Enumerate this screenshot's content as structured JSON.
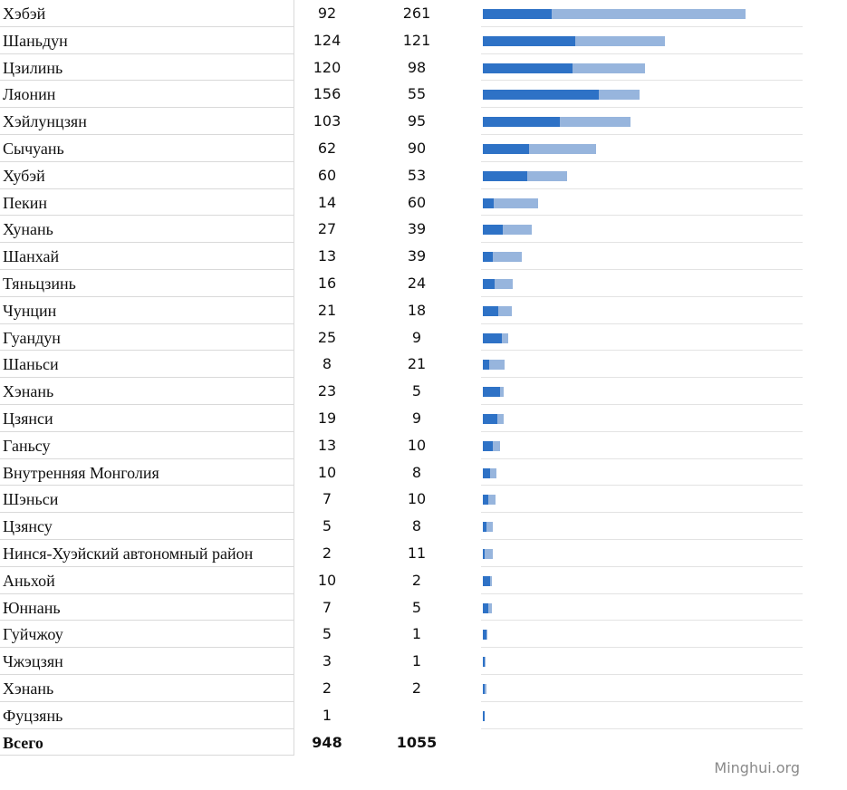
{
  "chart_data": {
    "type": "bar",
    "stacked": true,
    "series_colors": [
      "#2e72c6",
      "#97b5dd"
    ],
    "rows": [
      {
        "name": "Хэбэй",
        "a": 92,
        "b": 261
      },
      {
        "name": "Шаньдун",
        "a": 124,
        "b": 121
      },
      {
        "name": "Цзилинь",
        "a": 120,
        "b": 98
      },
      {
        "name": "Ляонин",
        "a": 156,
        "b": 55
      },
      {
        "name": "Хэйлунцзян",
        "a": 103,
        "b": 95
      },
      {
        "name": "Сычуань",
        "a": 62,
        "b": 90
      },
      {
        "name": "Хубэй",
        "a": 60,
        "b": 53
      },
      {
        "name": "Пекин",
        "a": 14,
        "b": 60
      },
      {
        "name": "Хунань",
        "a": 27,
        "b": 39
      },
      {
        "name": "Шанхай",
        "a": 13,
        "b": 39
      },
      {
        "name": "Тяньцзинь",
        "a": 16,
        "b": 24
      },
      {
        "name": "Чунцин",
        "a": 21,
        "b": 18
      },
      {
        "name": "Гуандун",
        "a": 25,
        "b": 9
      },
      {
        "name": "Шаньси",
        "a": 8,
        "b": 21
      },
      {
        "name": "Хэнань",
        "a": 23,
        "b": 5
      },
      {
        "name": "Цзянси",
        "a": 19,
        "b": 9
      },
      {
        "name": "Ганьсу",
        "a": 13,
        "b": 10
      },
      {
        "name": "Внутренняя Монголия",
        "a": 10,
        "b": 8
      },
      {
        "name": "Шэньси",
        "a": 7,
        "b": 10
      },
      {
        "name": "Цзянсу",
        "a": 5,
        "b": 8
      },
      {
        "name": "Нинся-Хуэйский автономный район",
        "a": 2,
        "b": 11
      },
      {
        "name": "Аньхой",
        "a": 10,
        "b": 2
      },
      {
        "name": "Юннань",
        "a": 7,
        "b": 5
      },
      {
        "name": "Гуйчжоу",
        "a": 5,
        "b": 1
      },
      {
        "name": "Чжэцзян",
        "a": 3,
        "b": 1
      },
      {
        "name": "Хэнань",
        "a": 2,
        "b": 2
      },
      {
        "name": "Фуцзянь",
        "a": 1,
        "b": null
      }
    ],
    "total": {
      "name": "Всего",
      "a": 948,
      "b": 1055
    }
  },
  "watermark": "Minghui.org"
}
